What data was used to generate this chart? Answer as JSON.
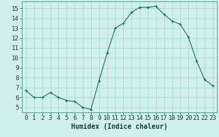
{
  "x": [
    0,
    1,
    2,
    3,
    4,
    5,
    6,
    7,
    8,
    9,
    10,
    11,
    12,
    13,
    14,
    15,
    16,
    17,
    18,
    19,
    20,
    21,
    22,
    23
  ],
  "y": [
    6.7,
    6.0,
    6.0,
    6.5,
    6.0,
    5.7,
    5.6,
    5.0,
    4.8,
    7.7,
    10.5,
    13.0,
    13.5,
    14.6,
    15.1,
    15.1,
    15.2,
    14.4,
    13.7,
    13.4,
    12.1,
    9.7,
    7.8,
    7.2
  ],
  "xlabel": "Humidex (Indice chaleur)",
  "xlim": [
    -0.5,
    23.5
  ],
  "ylim": [
    4.5,
    15.7
  ],
  "yticks": [
    5,
    6,
    7,
    8,
    9,
    10,
    11,
    12,
    13,
    14,
    15
  ],
  "xtick_labels": [
    "0",
    "1",
    "2",
    "3",
    "4",
    "5",
    "6",
    "7",
    "8",
    "9",
    "10",
    "11",
    "12",
    "13",
    "14",
    "15",
    "16",
    "17",
    "18",
    "19",
    "20",
    "21",
    "22",
    "23"
  ],
  "line_color": "#1a6b5a",
  "marker_color": "#1a6b5a",
  "bg_color": "#cff0ec",
  "grid_major_color": "#aad8d3",
  "grid_minor_color": "#bde4e0",
  "xlabel_fontsize": 7,
  "tick_fontsize": 6.5
}
